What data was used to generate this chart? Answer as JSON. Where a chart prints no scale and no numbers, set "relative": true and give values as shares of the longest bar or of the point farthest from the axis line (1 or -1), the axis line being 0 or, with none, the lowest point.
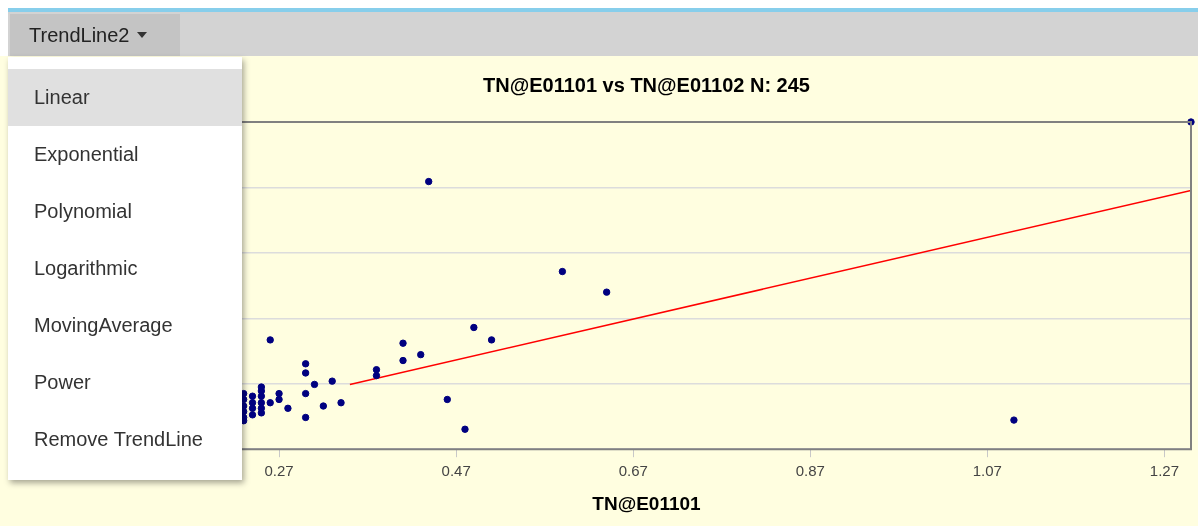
{
  "chart_data": {
    "type": "scatter",
    "title": "TN@E01101 vs TN@E01102 N: 245",
    "xlabel": "TN@E01101",
    "relative": true,
    "xlim": [
      0.07,
      1.3
    ],
    "xticks": [
      0.27,
      0.47,
      0.67,
      0.87,
      1.07,
      1.27
    ],
    "grid": "y",
    "annotations": [
      "TrendLine2",
      "Linear",
      "Exponential",
      "Polynomial",
      "Logarithmic",
      "MovingAverage",
      "Power",
      "Remove TrendLine"
    ],
    "series": [
      {
        "color": "#000080",
        "marker": "circle",
        "x": [
          1.3,
          0.439,
          0.59,
          0.64,
          1.1,
          0.49,
          0.51,
          0.26,
          0.41,
          0.41,
          0.43,
          0.38,
          0.38,
          0.46,
          0.48,
          0.3,
          0.3,
          0.31,
          0.33,
          0.3,
          0.34,
          0.32,
          0.3,
          0.28,
          0.27,
          0.27,
          0.26,
          0.25,
          0.25,
          0.25,
          0.25,
          0.25,
          0.25,
          0.24,
          0.24,
          0.24,
          0.24,
          0.23,
          0.23,
          0.23,
          0.23,
          0.23,
          0.23
        ],
        "values": [
          1.0,
          0.818,
          0.543,
          0.48,
          0.089,
          0.372,
          0.334,
          0.334,
          0.324,
          0.271,
          0.289,
          0.243,
          0.225,
          0.152,
          0.061,
          0.261,
          0.233,
          0.198,
          0.208,
          0.17,
          0.142,
          0.132,
          0.097,
          0.125,
          0.17,
          0.152,
          0.142,
          0.19,
          0.178,
          0.162,
          0.142,
          0.125,
          0.111,
          0.162,
          0.142,
          0.125,
          0.105,
          0.17,
          0.152,
          0.132,
          0.115,
          0.097,
          0.087
        ]
      },
      {
        "type": "line",
        "color": "#ff0000",
        "x": [
          0.35,
          1.3
        ],
        "values": [
          0.198,
          0.791
        ]
      }
    ]
  }
}
